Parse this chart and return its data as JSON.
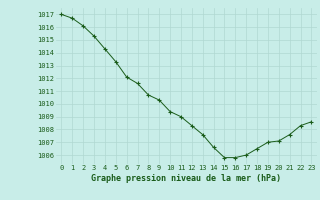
{
  "x": [
    0,
    1,
    2,
    3,
    4,
    5,
    6,
    7,
    8,
    9,
    10,
    11,
    12,
    13,
    14,
    15,
    16,
    17,
    18,
    19,
    20,
    21,
    22,
    23
  ],
  "y": [
    1017.0,
    1016.7,
    1016.1,
    1015.3,
    1014.3,
    1013.3,
    1012.1,
    1011.6,
    1010.7,
    1010.3,
    1009.4,
    1009.0,
    1008.3,
    1007.6,
    1006.6,
    1005.8,
    1005.8,
    1006.0,
    1006.5,
    1007.0,
    1007.1,
    1007.6,
    1008.3,
    1008.6
  ],
  "line_color": "#1a5c1a",
  "marker_color": "#1a5c1a",
  "bg_color": "#c8ede8",
  "grid_color": "#b0d8d2",
  "xlabel": "Graphe pression niveau de la mer (hPa)",
  "xlabel_color": "#1a5c1a",
  "tick_color": "#1a5c1a",
  "ylim": [
    1005.3,
    1017.5
  ],
  "xlim": [
    -0.5,
    23.5
  ],
  "yticks": [
    1006,
    1007,
    1008,
    1009,
    1010,
    1011,
    1012,
    1013,
    1014,
    1015,
    1016,
    1017
  ],
  "xticks": [
    0,
    1,
    2,
    3,
    4,
    5,
    6,
    7,
    8,
    9,
    10,
    11,
    12,
    13,
    14,
    15,
    16,
    17,
    18,
    19,
    20,
    21,
    22,
    23
  ],
  "ytick_labels": [
    "1006",
    "1007",
    "1008",
    "1009",
    "1010",
    "1011",
    "1012",
    "1013",
    "1014",
    "1015",
    "1016",
    "1017"
  ],
  "xtick_labels": [
    "0",
    "1",
    "2",
    "3",
    "4",
    "5",
    "6",
    "7",
    "8",
    "9",
    "10",
    "11",
    "12",
    "13",
    "14",
    "15",
    "16",
    "17",
    "18",
    "19",
    "20",
    "21",
    "22",
    "23"
  ],
  "tick_fontsize": 5,
  "xlabel_fontsize": 6,
  "linewidth": 0.7,
  "markersize": 3.5,
  "markeredgewidth": 0.8
}
